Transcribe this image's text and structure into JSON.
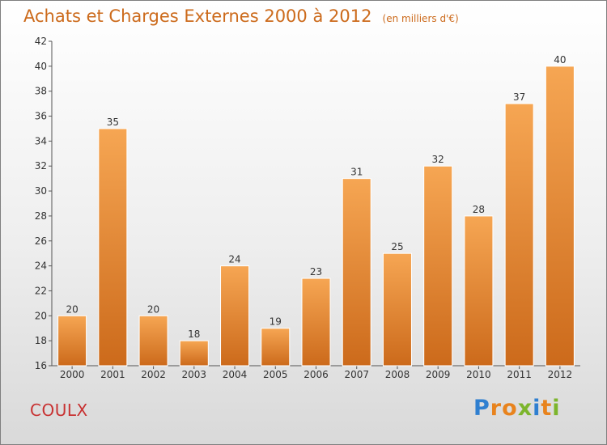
{
  "header": {
    "title": "Achats et Charges Externes 2000 à 2012",
    "unit": "(en milliers d'€)"
  },
  "footer": {
    "commune": "COULX",
    "logo_text": "Proxiti"
  },
  "colors": {
    "bar_top": "#f6a653",
    "bar_bottom": "#cc6a1b",
    "title": "#cc6a1b",
    "commune": "#c83232"
  },
  "chart_data": {
    "type": "bar",
    "title": "Achats et Charges Externes 2000 à 2012",
    "subtitle": "(en milliers d'€)",
    "categories": [
      "2000",
      "2001",
      "2002",
      "2003",
      "2004",
      "2005",
      "2006",
      "2007",
      "2008",
      "2009",
      "2010",
      "2011",
      "2012"
    ],
    "values": [
      20,
      35,
      20,
      18,
      24,
      19,
      23,
      31,
      25,
      32,
      28,
      37,
      40
    ],
    "ylim": [
      16,
      42
    ],
    "yticks": [
      16,
      18,
      20,
      22,
      24,
      26,
      28,
      30,
      32,
      34,
      36,
      38,
      40,
      42
    ],
    "grid": false,
    "xlabel": "",
    "ylabel": ""
  }
}
